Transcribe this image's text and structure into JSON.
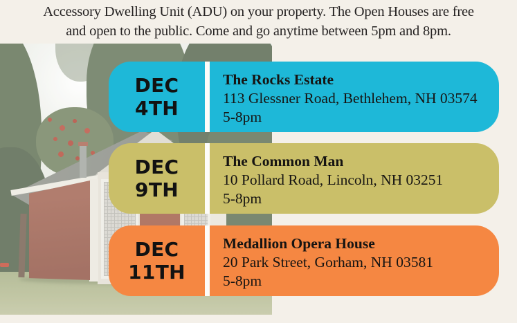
{
  "intro": {
    "line1": "Accessory Dwelling Unit (ADU) on your property. The Open Houses are free",
    "line2": "and open to the public. Come and go anytime between 5pm and 8pm."
  },
  "events": [
    {
      "month": "DEC",
      "day": "4TH",
      "title": "The Rocks Estate",
      "address": "113 Glessner Road, Bethlehem, NH 03574",
      "time": "5-8pm",
      "color": "#1eb8d8"
    },
    {
      "month": "DEC",
      "day": "9TH",
      "title": "The Common Man",
      "address": "10 Pollard Road, Lincoln, NH 03251",
      "time": "5-8pm",
      "color": "#cabf69"
    },
    {
      "month": "DEC",
      "day": "11TH",
      "title": "Medallion Opera House",
      "address": "20 Park Street, Gorham, NH 03581",
      "time": "5-8pm",
      "color": "#f58742"
    }
  ],
  "colors": {
    "background": "#f4f0e9",
    "divider": "#fdfcf9",
    "text_dark": "#1b1b1b"
  }
}
